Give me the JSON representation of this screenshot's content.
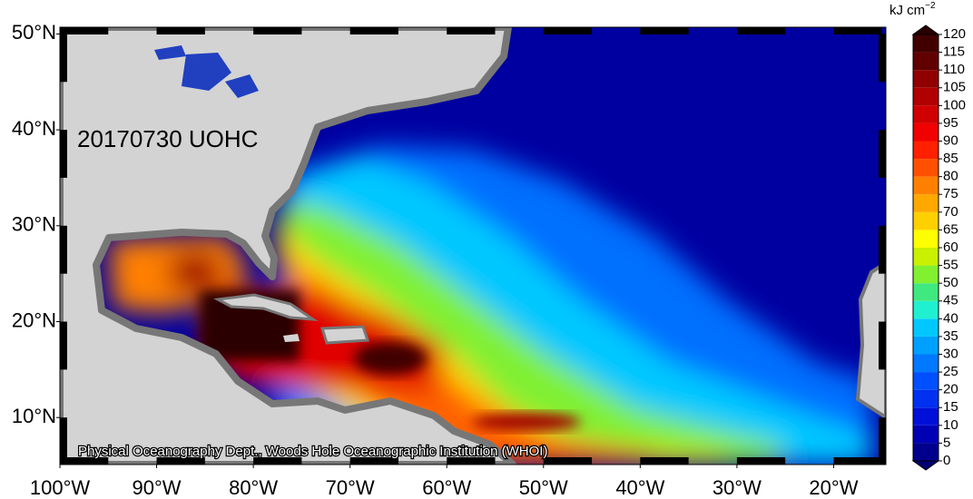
{
  "map": {
    "title": "20170730 UOHC",
    "credit": "Physical Oceanography Dept., Woods Hole Oceanographic Institution (WHOI)",
    "lonlim": [
      -100,
      -14.6
    ],
    "latlim": [
      5.1,
      50.7
    ],
    "lonticks": [
      {
        "value": -100,
        "label": "100°W"
      },
      {
        "value": -90,
        "label": "90°W"
      },
      {
        "value": -80,
        "label": "80°W"
      },
      {
        "value": -70,
        "label": "70°W"
      },
      {
        "value": -60,
        "label": "60°W"
      },
      {
        "value": -50,
        "label": "50°W"
      },
      {
        "value": -40,
        "label": "40°W"
      },
      {
        "value": -30,
        "label": "30°W"
      },
      {
        "value": -20,
        "label": "20°W"
      }
    ],
    "latticks": [
      {
        "value": 10,
        "label": "10°N"
      },
      {
        "value": 20,
        "label": "20°N"
      },
      {
        "value": 30,
        "label": "30°N"
      },
      {
        "value": 40,
        "label": "40°N"
      },
      {
        "value": 50,
        "label": "50°N"
      }
    ],
    "colorbar": {
      "unit": "kJ cm",
      "unit_exponent": "−2",
      "ticks": [
        0,
        5,
        10,
        15,
        20,
        25,
        30,
        35,
        40,
        45,
        50,
        55,
        60,
        65,
        70,
        75,
        80,
        85,
        90,
        95,
        100,
        105,
        110,
        115,
        120
      ],
      "colors": [
        "#00008c",
        "#0000b4",
        "#0010d8",
        "#0030f0",
        "#0050ff",
        "#0078ff",
        "#00a0ff",
        "#00c8ff",
        "#20f0d0",
        "#40e880",
        "#80f030",
        "#c8f000",
        "#ffff00",
        "#ffd000",
        "#ffa800",
        "#ff8000",
        "#ff5000",
        "#ff2000",
        "#f00000",
        "#d00000",
        "#b00000",
        "#900000",
        "#600000",
        "#400000"
      ],
      "over_color": "#2a0000",
      "under_color": "#000070"
    }
  }
}
